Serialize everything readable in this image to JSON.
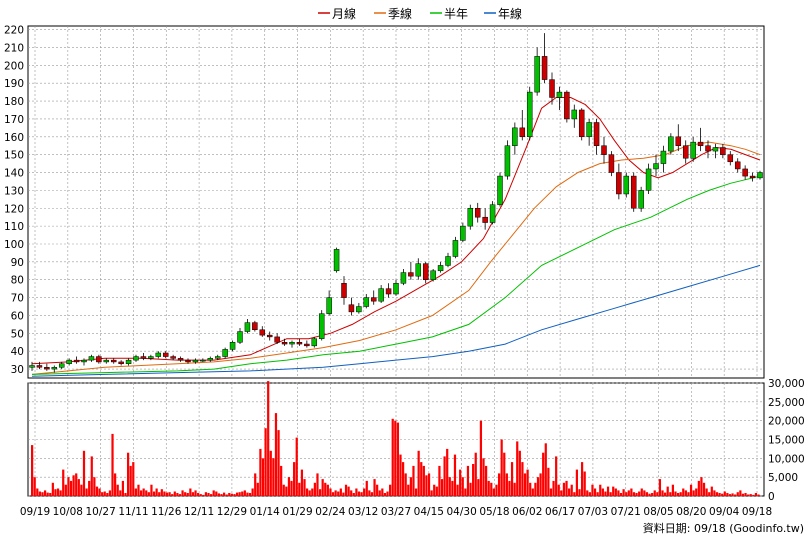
{
  "legend": {
    "items": [
      {
        "label": "月線",
        "color": "#cc0000"
      },
      {
        "label": "季線",
        "color": "#e06a10"
      },
      {
        "label": "半年",
        "color": "#00c000"
      },
      {
        "label": "年線",
        "color": "#1060c0"
      }
    ]
  },
  "credit": "資料日期: 09/18 (Goodinfo.tw)",
  "chart_data": [
    {
      "type": "candlestick",
      "y_ticks": [
        "220",
        "210",
        "200",
        "190",
        "180",
        "170",
        "160",
        "150",
        "140",
        "130",
        "120",
        "110",
        "100",
        "90",
        "80",
        "70",
        "60",
        "50",
        "40",
        "30"
      ],
      "ylim": [
        25,
        222
      ],
      "grid": true,
      "up_color": "#00c000",
      "down_color": "#cc0000",
      "candles": [
        {
          "o": 31,
          "h": 34,
          "l": 29,
          "c": 32
        },
        {
          "o": 32,
          "h": 34,
          "l": 30,
          "c": 31
        },
        {
          "o": 31,
          "h": 33,
          "l": 29,
          "c": 30
        },
        {
          "o": 30,
          "h": 32,
          "l": 28,
          "c": 31
        },
        {
          "o": 31,
          "h": 34,
          "l": 30,
          "c": 33
        },
        {
          "o": 33,
          "h": 36,
          "l": 32,
          "c": 35
        },
        {
          "o": 35,
          "h": 37,
          "l": 33,
          "c": 34
        },
        {
          "o": 34,
          "h": 36,
          "l": 32,
          "c": 35
        },
        {
          "o": 35,
          "h": 38,
          "l": 34,
          "c": 37
        },
        {
          "o": 37,
          "h": 38,
          "l": 33,
          "c": 34
        },
        {
          "o": 34,
          "h": 36,
          "l": 33,
          "c": 35
        },
        {
          "o": 35,
          "h": 36,
          "l": 33,
          "c": 34
        },
        {
          "o": 34,
          "h": 35,
          "l": 32,
          "c": 33
        },
        {
          "o": 33,
          "h": 36,
          "l": 32,
          "c": 35
        },
        {
          "o": 35,
          "h": 38,
          "l": 34,
          "c": 37
        },
        {
          "o": 37,
          "h": 39,
          "l": 35,
          "c": 36
        },
        {
          "o": 36,
          "h": 38,
          "l": 35,
          "c": 37
        },
        {
          "o": 37,
          "h": 40,
          "l": 36,
          "c": 39
        },
        {
          "o": 39,
          "h": 40,
          "l": 36,
          "c": 37
        },
        {
          "o": 37,
          "h": 38,
          "l": 35,
          "c": 36
        },
        {
          "o": 36,
          "h": 37,
          "l": 34,
          "c": 35
        },
        {
          "o": 35,
          "h": 36,
          "l": 33,
          "c": 34
        },
        {
          "o": 34,
          "h": 36,
          "l": 33,
          "c": 35
        },
        {
          "o": 35,
          "h": 36,
          "l": 34,
          "c": 35
        },
        {
          "o": 35,
          "h": 37,
          "l": 34,
          "c": 36
        },
        {
          "o": 36,
          "h": 38,
          "l": 35,
          "c": 37
        },
        {
          "o": 37,
          "h": 42,
          "l": 36,
          "c": 41
        },
        {
          "o": 41,
          "h": 46,
          "l": 40,
          "c": 45
        },
        {
          "o": 45,
          "h": 53,
          "l": 44,
          "c": 51
        },
        {
          "o": 51,
          "h": 58,
          "l": 50,
          "c": 56
        },
        {
          "o": 56,
          "h": 57,
          "l": 51,
          "c": 52
        },
        {
          "o": 52,
          "h": 54,
          "l": 48,
          "c": 49
        },
        {
          "o": 49,
          "h": 51,
          "l": 46,
          "c": 48
        },
        {
          "o": 48,
          "h": 50,
          "l": 44,
          "c": 45
        },
        {
          "o": 45,
          "h": 47,
          "l": 43,
          "c": 44
        },
        {
          "o": 44,
          "h": 46,
          "l": 42,
          "c": 45
        },
        {
          "o": 45,
          "h": 47,
          "l": 43,
          "c": 44
        },
        {
          "o": 44,
          "h": 46,
          "l": 42,
          "c": 43
        },
        {
          "o": 43,
          "h": 48,
          "l": 42,
          "c": 47
        },
        {
          "o": 47,
          "h": 63,
          "l": 46,
          "c": 61
        },
        {
          "o": 61,
          "h": 74,
          "l": 60,
          "c": 70
        },
        {
          "o": 85,
          "h": 98,
          "l": 84,
          "c": 97
        },
        {
          "o": 78,
          "h": 82,
          "l": 66,
          "c": 70
        },
        {
          "o": 66,
          "h": 70,
          "l": 60,
          "c": 62
        },
        {
          "o": 62,
          "h": 67,
          "l": 61,
          "c": 65
        },
        {
          "o": 65,
          "h": 72,
          "l": 64,
          "c": 70
        },
        {
          "o": 70,
          "h": 74,
          "l": 66,
          "c": 68
        },
        {
          "o": 68,
          "h": 77,
          "l": 67,
          "c": 75
        },
        {
          "o": 75,
          "h": 78,
          "l": 70,
          "c": 72
        },
        {
          "o": 72,
          "h": 80,
          "l": 71,
          "c": 78
        },
        {
          "o": 78,
          "h": 86,
          "l": 77,
          "c": 84
        },
        {
          "o": 84,
          "h": 90,
          "l": 80,
          "c": 82
        },
        {
          "o": 82,
          "h": 92,
          "l": 80,
          "c": 89
        },
        {
          "o": 89,
          "h": 90,
          "l": 78,
          "c": 80
        },
        {
          "o": 80,
          "h": 86,
          "l": 79,
          "c": 85
        },
        {
          "o": 85,
          "h": 90,
          "l": 84,
          "c": 88
        },
        {
          "o": 88,
          "h": 95,
          "l": 87,
          "c": 93
        },
        {
          "o": 93,
          "h": 104,
          "l": 92,
          "c": 102
        },
        {
          "o": 102,
          "h": 112,
          "l": 101,
          "c": 110
        },
        {
          "o": 110,
          "h": 122,
          "l": 108,
          "c": 120
        },
        {
          "o": 120,
          "h": 123,
          "l": 112,
          "c": 115
        },
        {
          "o": 115,
          "h": 120,
          "l": 108,
          "c": 112
        },
        {
          "o": 112,
          "h": 124,
          "l": 111,
          "c": 122
        },
        {
          "o": 122,
          "h": 140,
          "l": 121,
          "c": 138
        },
        {
          "o": 138,
          "h": 158,
          "l": 136,
          "c": 155
        },
        {
          "o": 155,
          "h": 168,
          "l": 150,
          "c": 165
        },
        {
          "o": 165,
          "h": 175,
          "l": 158,
          "c": 160
        },
        {
          "o": 160,
          "h": 188,
          "l": 158,
          "c": 185
        },
        {
          "o": 185,
          "h": 210,
          "l": 183,
          "c": 205
        },
        {
          "o": 205,
          "h": 218,
          "l": 190,
          "c": 192
        },
        {
          "o": 192,
          "h": 196,
          "l": 178,
          "c": 182
        },
        {
          "o": 182,
          "h": 188,
          "l": 175,
          "c": 185
        },
        {
          "o": 185,
          "h": 186,
          "l": 168,
          "c": 170
        },
        {
          "o": 170,
          "h": 178,
          "l": 165,
          "c": 175
        },
        {
          "o": 175,
          "h": 176,
          "l": 158,
          "c": 160
        },
        {
          "o": 160,
          "h": 170,
          "l": 155,
          "c": 168
        },
        {
          "o": 168,
          "h": 170,
          "l": 150,
          "c": 155
        },
        {
          "o": 155,
          "h": 160,
          "l": 145,
          "c": 150
        },
        {
          "o": 150,
          "h": 152,
          "l": 138,
          "c": 140
        },
        {
          "o": 140,
          "h": 145,
          "l": 125,
          "c": 128
        },
        {
          "o": 128,
          "h": 140,
          "l": 126,
          "c": 138
        },
        {
          "o": 138,
          "h": 140,
          "l": 118,
          "c": 120
        },
        {
          "o": 120,
          "h": 132,
          "l": 118,
          "c": 130
        },
        {
          "o": 130,
          "h": 145,
          "l": 128,
          "c": 142
        },
        {
          "o": 142,
          "h": 150,
          "l": 138,
          "c": 145
        },
        {
          "o": 145,
          "h": 155,
          "l": 140,
          "c": 152
        },
        {
          "o": 152,
          "h": 162,
          "l": 150,
          "c": 160
        },
        {
          "o": 160,
          "h": 167,
          "l": 152,
          "c": 155
        },
        {
          "o": 155,
          "h": 158,
          "l": 145,
          "c": 148
        },
        {
          "o": 148,
          "h": 160,
          "l": 146,
          "c": 157
        },
        {
          "o": 157,
          "h": 165,
          "l": 152,
          "c": 155
        },
        {
          "o": 155,
          "h": 158,
          "l": 148,
          "c": 152
        },
        {
          "o": 152,
          "h": 156,
          "l": 148,
          "c": 154
        },
        {
          "o": 154,
          "h": 156,
          "l": 148,
          "c": 150
        },
        {
          "o": 150,
          "h": 152,
          "l": 144,
          "c": 146
        },
        {
          "o": 146,
          "h": 148,
          "l": 140,
          "c": 142
        },
        {
          "o": 142,
          "h": 144,
          "l": 136,
          "c": 138
        },
        {
          "o": 138,
          "h": 140,
          "l": 135,
          "c": 137
        },
        {
          "o": 137,
          "h": 141,
          "l": 136,
          "c": 140
        }
      ],
      "series": [
        {
          "name": "月線",
          "color": "#cc0000",
          "x": [
            0,
            5,
            10,
            15,
            20,
            25,
            30,
            35,
            38,
            41,
            44,
            47,
            50,
            53,
            56,
            59,
            62,
            65,
            68,
            70,
            72,
            74,
            76,
            78,
            80,
            82,
            84,
            86,
            88,
            90,
            92,
            94,
            96,
            98,
            100
          ],
          "y": [
            33,
            34,
            36,
            36,
            35,
            35,
            38,
            47,
            47,
            50,
            55,
            62,
            68,
            75,
            82,
            90,
            103,
            125,
            155,
            176,
            182,
            182,
            178,
            170,
            158,
            147,
            140,
            137,
            140,
            145,
            150,
            154,
            153,
            150,
            147
          ]
        },
        {
          "name": "季線",
          "color": "#e06a10",
          "x": [
            0,
            5,
            10,
            15,
            20,
            25,
            30,
            35,
            40,
            45,
            50,
            55,
            60,
            63,
            66,
            69,
            72,
            75,
            78,
            81,
            84,
            87,
            90,
            93,
            96,
            98,
            100
          ],
          "y": [
            27,
            29,
            31,
            32,
            33,
            34,
            36,
            39,
            42,
            46,
            52,
            60,
            74,
            90,
            105,
            120,
            132,
            140,
            145,
            147,
            148,
            150,
            155,
            157,
            155,
            153,
            150
          ]
        },
        {
          "name": "半年",
          "color": "#00c000",
          "x": [
            0,
            10,
            20,
            25,
            30,
            35,
            40,
            45,
            50,
            55,
            60,
            65,
            70,
            75,
            80,
            85,
            90,
            93,
            96,
            98,
            100
          ],
          "y": [
            27,
            28,
            29,
            30,
            33,
            35,
            38,
            40,
            44,
            48,
            55,
            70,
            88,
            98,
            108,
            115,
            125,
            130,
            134,
            136,
            138
          ]
        },
        {
          "name": "年線",
          "color": "#1060c0",
          "x": [
            0,
            10,
            20,
            30,
            40,
            45,
            50,
            55,
            60,
            65,
            70,
            75,
            80,
            85,
            90,
            95,
            100
          ],
          "y": [
            26,
            27,
            28,
            29,
            31,
            33,
            35,
            37,
            40,
            44,
            52,
            58,
            64,
            70,
            76,
            82,
            88
          ]
        }
      ]
    },
    {
      "type": "bar",
      "color": "#ff0000",
      "y_ticks": [
        "30,000",
        "25,000",
        "20,000",
        "15,000",
        "10,000",
        "5,000",
        "0"
      ],
      "ylim": [
        0,
        30000
      ],
      "x_ticks": [
        "09/19",
        "10/08",
        "10/27",
        "11/11",
        "11/26",
        "12/11",
        "12/29",
        "01/14",
        "01/29",
        "02/24",
        "03/12",
        "03/27",
        "04/15",
        "04/30",
        "05/18",
        "06/02",
        "06/17",
        "07/03",
        "07/21",
        "08/05",
        "08/20",
        "09/04",
        "09/18"
      ],
      "values": [
        13500,
        5000,
        2000,
        1200,
        1000,
        1500,
        900,
        800,
        3500,
        1800,
        2000,
        1500,
        7000,
        3000,
        5000,
        4000,
        5500,
        6000,
        4500,
        3000,
        12000,
        2000,
        4000,
        10500,
        5000,
        2500,
        2000,
        1000,
        1200,
        800,
        1500,
        16500,
        6000,
        3000,
        1500,
        4000,
        800,
        11500,
        8000,
        9000,
        2000,
        3000,
        1500,
        2000,
        1500,
        1000,
        3000,
        1200,
        2000,
        1000,
        1800,
        1200,
        900,
        1000,
        500,
        1200,
        800,
        500,
        1500,
        1000,
        800,
        2000,
        1000,
        1500,
        800,
        500,
        300,
        1000,
        800,
        500,
        1500,
        1200,
        700,
        500,
        900,
        400,
        800,
        600,
        500,
        900,
        1000,
        1200,
        1500,
        900,
        800,
        2000,
        6000,
        3500,
        12500,
        10000,
        18000,
        30500,
        12000,
        10000,
        22000,
        17500,
        8000,
        3000,
        2500,
        5000,
        4000,
        9000,
        15500,
        3500,
        7000,
        4500,
        2000,
        1500,
        2000,
        3500,
        6000,
        1800,
        4500,
        3500,
        3000,
        2000,
        1000,
        1500,
        1200,
        2000,
        900,
        3000,
        2500,
        1500,
        800,
        2000,
        1200,
        1000,
        2000,
        4000,
        1500,
        1000,
        4500,
        3000,
        1500,
        2000,
        800,
        1200,
        3000,
        20500,
        20000,
        19500,
        11000,
        9000,
        6000,
        3000,
        5000,
        8000,
        2000,
        12000,
        9000,
        8000,
        5500,
        6000,
        1500,
        3000,
        2500,
        8000,
        4500,
        10500,
        12500,
        5000,
        4000,
        11000,
        3000,
        7000,
        5000,
        2000,
        8000,
        3500,
        8500,
        11500,
        4500,
        20000,
        10000,
        8000,
        4000,
        3500,
        2000,
        3000,
        6000,
        15000,
        11500,
        6000,
        4000,
        9000,
        3500,
        14500,
        12000,
        9000,
        6000,
        7000,
        3500,
        2000,
        3500,
        5000,
        6000,
        11500,
        14000,
        7500,
        2000,
        4000,
        10500,
        3000,
        1500,
        3500,
        4000,
        2000,
        3000,
        1000,
        7000,
        1800,
        9000,
        6500,
        1500,
        1000,
        3000,
        2000,
        1000,
        3000,
        2000,
        1200,
        2500,
        1000,
        2500,
        2000,
        1500,
        800,
        1800,
        1000,
        1500,
        2000,
        1000,
        800,
        1200,
        2000,
        1500,
        1000,
        600,
        800,
        1500,
        1000,
        4500,
        1500,
        900,
        2500,
        1000,
        3000,
        1200,
        800,
        1000,
        2000,
        1500,
        1000,
        3000,
        1500,
        2000,
        4000,
        5000,
        3500,
        2000,
        1000,
        2500,
        1500,
        1000,
        800,
        600,
        1200,
        800,
        500,
        700,
        400,
        1000,
        1500,
        600,
        800,
        400,
        500,
        300,
        800,
        400
      ]
    }
  ]
}
